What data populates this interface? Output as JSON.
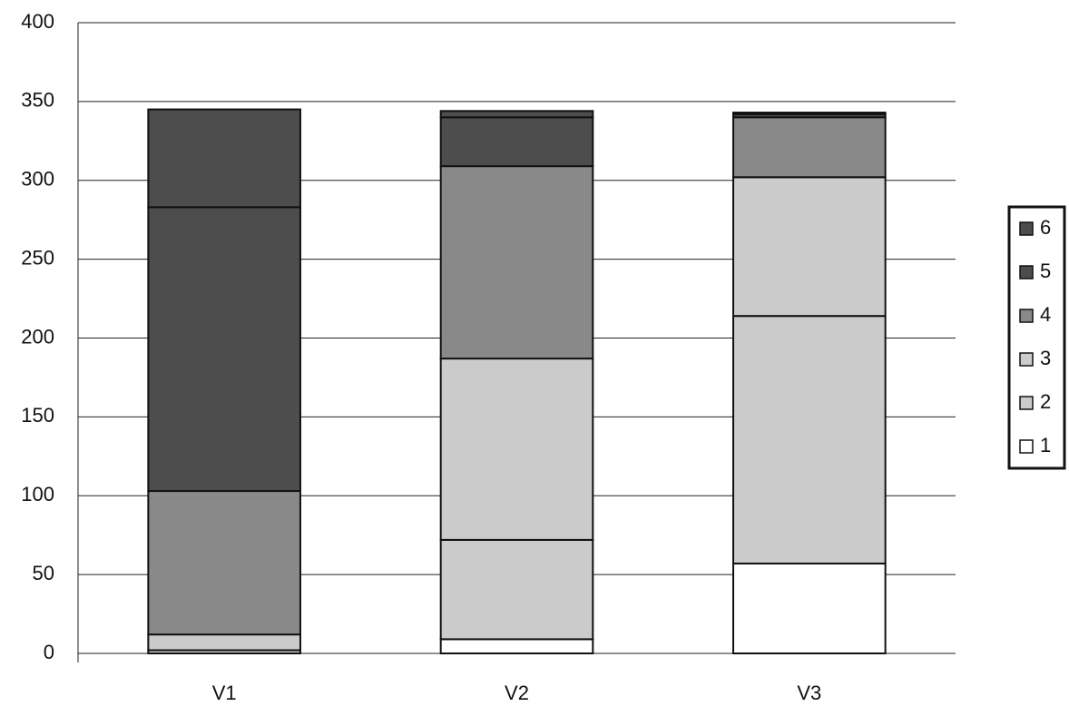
{
  "chart_data": {
    "type": "stacked_bar",
    "categories": [
      "V1",
      "V2",
      "V3"
    ],
    "series": [
      {
        "name": "1",
        "color": "#ffffff",
        "values": [
          0,
          9,
          57
        ]
      },
      {
        "name": "2",
        "color": "#cbcbcb",
        "values": [
          2,
          63,
          157
        ]
      },
      {
        "name": "3",
        "color": "#cbcbcb",
        "values": [
          10,
          115,
          88
        ]
      },
      {
        "name": "4",
        "color": "#898989",
        "values": [
          91,
          122,
          38
        ]
      },
      {
        "name": "5",
        "color": "#4d4d4d",
        "values": [
          180,
          31,
          2
        ]
      },
      {
        "name": "6",
        "color": "#4d4d4d",
        "values": [
          62,
          4,
          1
        ]
      }
    ],
    "ylim": [
      0,
      400
    ],
    "yticks": [
      0,
      50,
      100,
      150,
      200,
      250,
      300,
      350,
      400
    ],
    "grid": true
  }
}
